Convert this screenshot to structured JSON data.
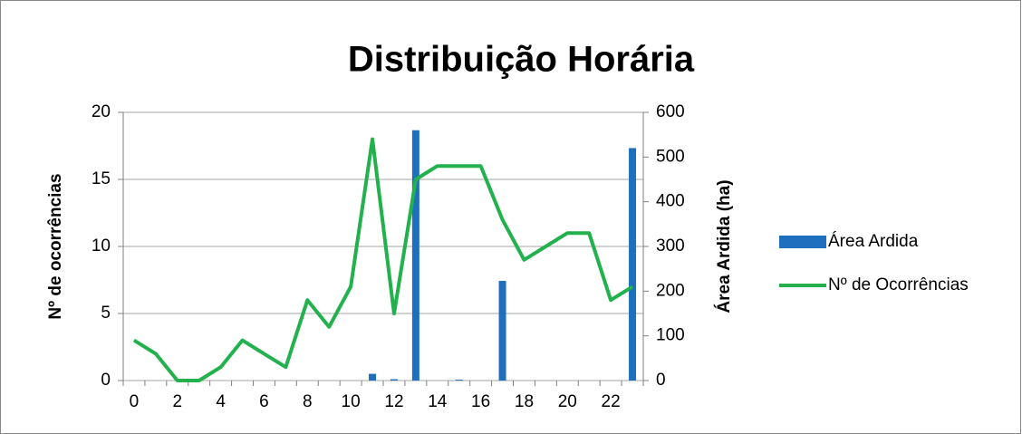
{
  "chart_data": {
    "type": "bar+line",
    "title": "Distribuição Horária",
    "ylabel": "Nº de ocorrências",
    "y2label": "Área Ardida (ha)",
    "categories": [
      0,
      null,
      2,
      null,
      4,
      null,
      6,
      null,
      8,
      null,
      10,
      null,
      12,
      null,
      14,
      null,
      16,
      null,
      18,
      null,
      20,
      null,
      22,
      null
    ],
    "ylim": [
      0,
      20
    ],
    "yticks": [
      0,
      5,
      10,
      15,
      20
    ],
    "y2lim": [
      0,
      600
    ],
    "y2ticks": [
      0,
      100,
      200,
      300,
      400,
      500,
      600
    ],
    "grid": true,
    "legend": "right",
    "series": [
      {
        "name": "Área Ardida",
        "type": "bar",
        "axis": "y2",
        "color": "#1f6fbf",
        "values": [
          0,
          0,
          0,
          0,
          0,
          0,
          0,
          0,
          0,
          0,
          0,
          15,
          3,
          560,
          0,
          2,
          0,
          223,
          0,
          0,
          0,
          0,
          0,
          520
        ]
      },
      {
        "name": "Nº de Ocorrências",
        "type": "line",
        "axis": "y",
        "color": "#22b14c",
        "values": [
          3,
          2,
          0,
          0,
          1,
          3,
          2,
          1,
          6,
          4,
          7,
          18,
          5,
          15,
          16,
          16,
          16,
          12,
          9,
          10,
          11,
          11,
          6,
          7
        ]
      }
    ]
  }
}
